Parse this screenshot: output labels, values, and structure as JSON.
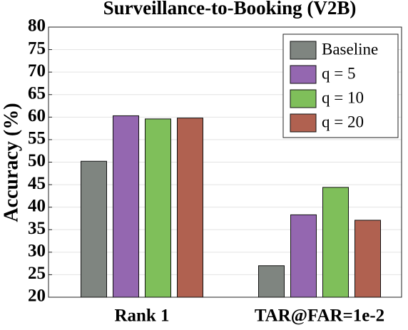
{
  "chart_data": {
    "type": "bar",
    "title": "Surveillance-to-Booking (V2B)",
    "y_label": "Accuracy (%)",
    "categories": [
      "Rank 1",
      "TAR@FAR=1e-2"
    ],
    "series": [
      {
        "name": "Baseline",
        "color": "#7f8580",
        "values": [
          50.2,
          27.0
        ]
      },
      {
        "name": "q = 5",
        "color": "#9467b0",
        "values": [
          60.3,
          38.3
        ]
      },
      {
        "name": "q = 10",
        "color": "#7fbf5a",
        "values": [
          59.6,
          44.4
        ]
      },
      {
        "name": "q = 20",
        "color": "#b06150",
        "values": [
          59.8,
          37.1
        ]
      }
    ],
    "ylim": [
      20,
      80
    ],
    "yticks": [
      20,
      25,
      30,
      35,
      40,
      45,
      50,
      55,
      60,
      65,
      70,
      75,
      80
    ],
    "grid": true,
    "legend": "upper right"
  }
}
